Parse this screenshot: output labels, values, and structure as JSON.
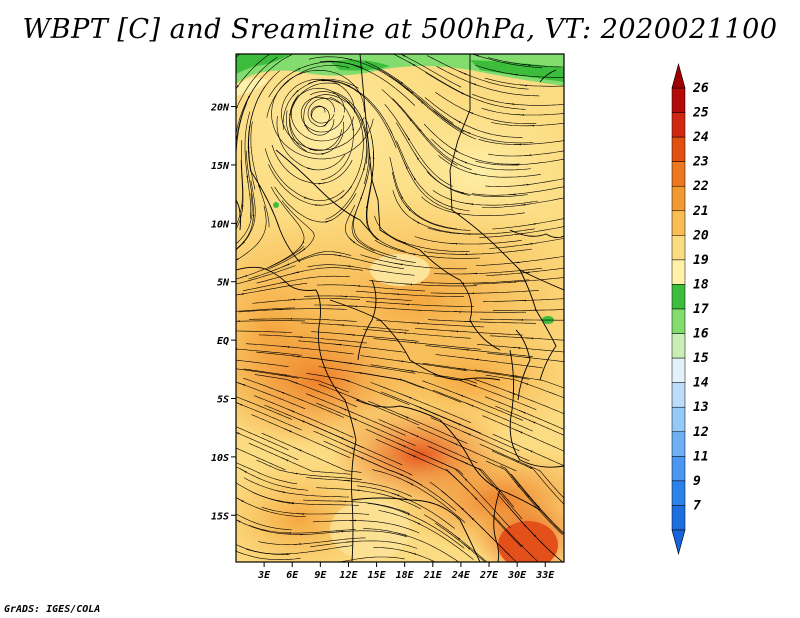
{
  "title": "WBPT [C] and Sreamline at 500hPa, VT: 2020021100",
  "footer": "GrADS: IGES/COLA",
  "map": {
    "lon_ticks": [
      "3E",
      "6E",
      "9E",
      "12E",
      "15E",
      "18E",
      "21E",
      "24E",
      "27E",
      "30E",
      "33E"
    ],
    "lat_ticks": [
      "20N",
      "15N",
      "10N",
      "5N",
      "EQ",
      "5S",
      "10S",
      "15S"
    ],
    "lon_range": [
      0,
      35
    ],
    "lat_range": [
      -19,
      24.5
    ],
    "lon_values": [
      3,
      6,
      9,
      12,
      15,
      18,
      21,
      24,
      27,
      30,
      33
    ],
    "lat_values": [
      20,
      15,
      10,
      5,
      0,
      -5,
      -10,
      -15
    ]
  },
  "colorbar": {
    "labels": [
      "7",
      "9",
      "11",
      "12",
      "13",
      "14",
      "15",
      "16",
      "17",
      "18",
      "19",
      "20",
      "21",
      "22",
      "23",
      "24",
      "25",
      "26"
    ],
    "colors": [
      "#1e6ee0",
      "#2b82ea",
      "#4b98f0",
      "#6fb0f4",
      "#96c8f8",
      "#bcdcfa",
      "#e2f2f8",
      "#c8f0b4",
      "#82dc6e",
      "#3cbe3c",
      "#fff0aa",
      "#fcdc82",
      "#f8be55",
      "#f29a32",
      "#ec7820",
      "#e05010",
      "#d02810",
      "#b40a0a"
    ],
    "tip_colors": [
      "#1464dc",
      "#a00000"
    ]
  },
  "centres": [
    {
      "name": "cyclonic circulation",
      "lon": 9,
      "lat": 19.5
    }
  ]
}
